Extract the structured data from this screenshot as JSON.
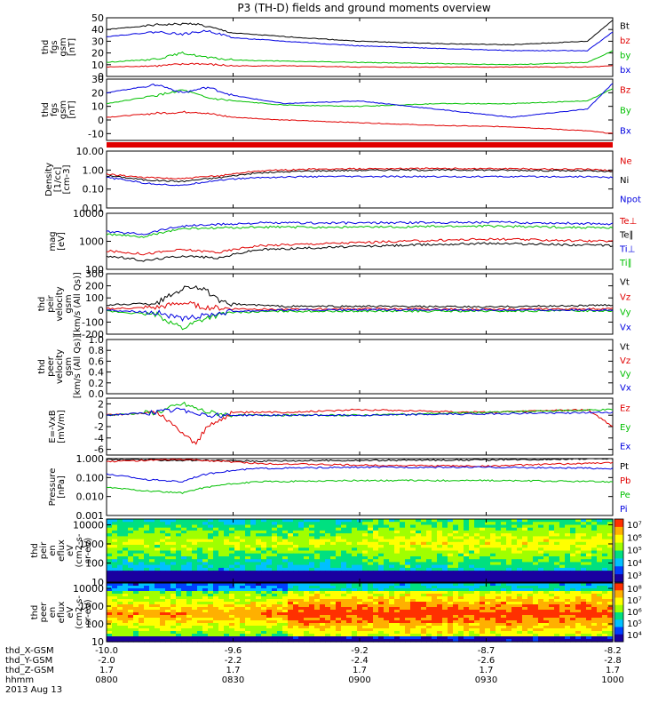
{
  "title": "P3 (TH-D) fields and ground moments overview",
  "colors": {
    "black": "#000000",
    "red": "#e00000",
    "green": "#00c000",
    "blue": "#0000e0"
  },
  "chart_data": [
    {
      "type": "line",
      "id": "fgs-mag",
      "ylabel": [
        "thd",
        "fgs",
        "gsm",
        "[nT]"
      ],
      "ylim": [
        0,
        50
      ],
      "yticks": [
        "0",
        "10",
        "20",
        "30",
        "40",
        "50"
      ],
      "series": [
        {
          "name": "Bt",
          "color": "black",
          "x": [
            8.0,
            8.2,
            8.35,
            8.5,
            8.7,
            9.0,
            9.3,
            9.6,
            9.9,
            10.0
          ],
          "values": [
            40,
            44,
            45,
            37,
            34,
            30,
            28,
            27,
            30,
            48
          ]
        },
        {
          "name": "bz",
          "color": "red",
          "x": [
            8.0,
            8.2,
            8.35,
            8.5,
            8.7,
            9.0,
            9.3,
            9.6,
            9.9,
            10.0
          ],
          "values": [
            8,
            9,
            11,
            9,
            9,
            8,
            8,
            8,
            8,
            9
          ]
        },
        {
          "name": "by",
          "color": "green",
          "x": [
            8.0,
            8.2,
            8.3,
            8.4,
            8.5,
            8.7,
            9.0,
            9.3,
            9.6,
            9.9,
            10.0
          ],
          "values": [
            12,
            15,
            20,
            16,
            14,
            13,
            12,
            11,
            10,
            12,
            22
          ]
        },
        {
          "name": "bx",
          "color": "blue",
          "x": [
            8.0,
            8.2,
            8.3,
            8.4,
            8.5,
            8.7,
            9.0,
            9.3,
            9.6,
            9.9,
            10.0
          ],
          "values": [
            34,
            38,
            36,
            39,
            33,
            30,
            26,
            24,
            22,
            22,
            38
          ]
        }
      ]
    },
    {
      "type": "line",
      "id": "fgs-comp",
      "ylabel": [
        "thd",
        "fgs",
        "gsm",
        "[nT]"
      ],
      "ylim": [
        -15,
        30
      ],
      "yticks": [
        "-10",
        "0",
        "10",
        "20",
        "30"
      ],
      "series": [
        {
          "name": "Bz",
          "color": "red",
          "x": [
            8.0,
            8.2,
            8.35,
            8.5,
            8.7,
            9.0,
            9.3,
            9.6,
            9.9,
            10.0
          ],
          "values": [
            2,
            5,
            6,
            2,
            0,
            -2,
            -4,
            -5,
            -8,
            -10
          ]
        },
        {
          "name": "By",
          "color": "green",
          "x": [
            8.0,
            8.2,
            8.3,
            8.4,
            8.5,
            8.7,
            9.0,
            9.3,
            9.6,
            9.9,
            10.0
          ],
          "values": [
            12,
            18,
            22,
            16,
            14,
            11,
            10,
            12,
            12,
            14,
            23
          ]
        },
        {
          "name": "Bx",
          "color": "blue",
          "x": [
            8.0,
            8.2,
            8.3,
            8.4,
            8.5,
            8.7,
            9.0,
            9.3,
            9.6,
            9.9,
            10.0
          ],
          "values": [
            20,
            26,
            20,
            24,
            18,
            12,
            14,
            8,
            2,
            8,
            27
          ]
        }
      ]
    },
    {
      "type": "line",
      "id": "flag-bar",
      "ylabel": [],
      "color": "red"
    },
    {
      "type": "line",
      "id": "density",
      "ylabel": [
        "Density",
        "[1/cc]",
        "[cm-3]"
      ],
      "ylog": true,
      "ylim": [
        0.01,
        10
      ],
      "yticks": [
        "0.01",
        "0.10",
        "1.00",
        "10.00"
      ],
      "series": [
        {
          "name": "Ne",
          "color": "red",
          "x": [
            8.0,
            8.15,
            8.3,
            8.45,
            8.6,
            8.8,
            9.1,
            9.5,
            9.9,
            10.0
          ],
          "values": [
            0.6,
            0.4,
            0.35,
            0.5,
            0.9,
            1.1,
            1.2,
            1.2,
            1.1,
            0.9
          ]
        },
        {
          "name": "Ni",
          "color": "black",
          "x": [
            8.0,
            8.15,
            8.3,
            8.45,
            8.6,
            8.8,
            9.1,
            9.5,
            9.9,
            10.0
          ],
          "values": [
            0.5,
            0.3,
            0.25,
            0.4,
            0.7,
            0.9,
            1.0,
            1.0,
            0.9,
            0.8
          ]
        },
        {
          "name": "Npot",
          "color": "blue",
          "x": [
            8.0,
            8.15,
            8.3,
            8.45,
            8.6,
            8.8,
            9.1,
            9.5,
            9.9,
            10.0
          ],
          "values": [
            0.4,
            0.2,
            0.15,
            0.3,
            0.4,
            0.45,
            0.45,
            0.45,
            0.45,
            0.4
          ]
        }
      ]
    },
    {
      "type": "line",
      "id": "temperature",
      "ylabel": [
        "mag",
        "[eV]"
      ],
      "ylog": true,
      "ylim": [
        100,
        10000
      ],
      "yticks": [
        "100",
        "1000",
        "10000"
      ],
      "series": [
        {
          "name": "Te⊥",
          "color": "red",
          "x": [
            8.0,
            8.15,
            8.3,
            8.45,
            8.6,
            9.0,
            9.5,
            10.0
          ],
          "values": [
            450,
            350,
            500,
            400,
            700,
            900,
            1200,
            1000
          ]
        },
        {
          "name": "Te∥",
          "color": "black",
          "x": [
            8.0,
            8.15,
            8.3,
            8.45,
            8.6,
            9.0,
            9.5,
            10.0
          ],
          "values": [
            300,
            200,
            300,
            250,
            500,
            650,
            850,
            700
          ]
        },
        {
          "name": "Ti⊥",
          "color": "blue",
          "x": [
            8.0,
            8.15,
            8.3,
            8.45,
            8.6,
            9.0,
            9.5,
            10.0
          ],
          "values": [
            2200,
            1800,
            3500,
            4000,
            4500,
            4500,
            4800,
            4200
          ]
        },
        {
          "name": "Ti∥",
          "color": "green",
          "x": [
            8.0,
            8.15,
            8.3,
            8.45,
            8.6,
            9.0,
            9.5,
            10.0
          ],
          "values": [
            1800,
            1400,
            2800,
            3000,
            3200,
            3200,
            3500,
            3000
          ]
        }
      ]
    },
    {
      "type": "line",
      "id": "peir-velocity",
      "ylabel": [
        "thd",
        "peir",
        "velocity",
        "gsm",
        "[km/s (All Qs)]"
      ],
      "ylim": [
        -200,
        300
      ],
      "yticks": [
        "-200",
        "-100",
        "0",
        "100",
        "200",
        "300"
      ],
      "series": [
        {
          "name": "Vt",
          "color": "black",
          "x": [
            8.0,
            8.2,
            8.3,
            8.35,
            8.4,
            8.45,
            8.5,
            8.7,
            9.0,
            9.5,
            10.0
          ],
          "values": [
            40,
            60,
            180,
            200,
            150,
            60,
            50,
            30,
            30,
            25,
            40
          ]
        },
        {
          "name": "Vz",
          "color": "red",
          "x": [
            8.0,
            8.2,
            8.3,
            8.4,
            8.5,
            8.7,
            9.0,
            9.5,
            10.0
          ],
          "values": [
            10,
            20,
            60,
            20,
            10,
            5,
            10,
            5,
            10
          ]
        },
        {
          "name": "Vy",
          "color": "green",
          "x": [
            8.0,
            8.2,
            8.3,
            8.35,
            8.4,
            8.5,
            8.7,
            9.0,
            9.5,
            10.0
          ],
          "values": [
            -10,
            -40,
            -150,
            -100,
            -60,
            -20,
            -10,
            -10,
            -10,
            -5
          ]
        },
        {
          "name": "Vx",
          "color": "blue",
          "x": [
            8.0,
            8.2,
            8.3,
            8.4,
            8.5,
            8.7,
            9.0,
            9.5,
            10.0
          ],
          "values": [
            0,
            -20,
            -80,
            -40,
            -10,
            0,
            0,
            0,
            0
          ]
        }
      ]
    },
    {
      "type": "line",
      "id": "peer-velocity",
      "ylabel": [
        "thd",
        "peer",
        "velocity",
        "gsm",
        "[km/s (All Qs)]"
      ],
      "ylim": [
        0,
        1
      ],
      "yticks": [
        "0.0",
        "0.2",
        "0.4",
        "0.6",
        "0.8",
        "1.0"
      ],
      "series": [
        {
          "name": "Vt",
          "color": "black",
          "x": [],
          "values": []
        },
        {
          "name": "Vz",
          "color": "red",
          "x": [],
          "values": []
        },
        {
          "name": "Vy",
          "color": "green",
          "x": [],
          "values": []
        },
        {
          "name": "Vx",
          "color": "blue",
          "x": [],
          "values": []
        }
      ]
    },
    {
      "type": "line",
      "id": "efield",
      "ylabel": [
        "E=-VxB",
        "[mV/m]"
      ],
      "ylim": [
        -7,
        3
      ],
      "yticks": [
        "-6",
        "-4",
        "-2",
        "0",
        "2"
      ],
      "series": [
        {
          "name": "Ez",
          "color": "red",
          "x": [
            8.0,
            8.2,
            8.3,
            8.35,
            8.4,
            8.5,
            8.7,
            9.0,
            9.5,
            9.9,
            10.0
          ],
          "values": [
            0,
            0.5,
            -3,
            -5,
            -2,
            0.5,
            0.5,
            1,
            0.5,
            1,
            -2
          ]
        },
        {
          "name": "Ey",
          "color": "green",
          "x": [
            8.0,
            8.2,
            8.3,
            8.4,
            8.5,
            9.0,
            10.0
          ],
          "values": [
            0,
            0.5,
            2,
            0.5,
            0,
            0,
            1
          ]
        },
        {
          "name": "Ex",
          "color": "blue",
          "x": [
            8.0,
            8.2,
            8.3,
            8.4,
            8.5,
            9.0,
            10.0
          ],
          "values": [
            0,
            0.5,
            1,
            0,
            0,
            0,
            0.5
          ]
        }
      ]
    },
    {
      "type": "line",
      "id": "pressure",
      "ylabel": [
        "Pressure",
        "[nPa]"
      ],
      "ylog": true,
      "ylim": [
        0.001,
        1
      ],
      "yticks": [
        "0.001",
        "0.010",
        "0.100",
        "1.000"
      ],
      "series": [
        {
          "name": "Pt",
          "color": "black",
          "x": [
            8.0,
            8.3,
            8.6,
            9.0,
            9.5,
            10.0
          ],
          "values": [
            0.9,
            0.8,
            0.75,
            0.8,
            0.85,
            1.0
          ]
        },
        {
          "name": "Pb",
          "color": "red",
          "x": [
            8.0,
            8.3,
            8.6,
            9.0,
            9.5,
            10.0
          ],
          "values": [
            0.7,
            0.9,
            0.55,
            0.45,
            0.4,
            0.6
          ]
        },
        {
          "name": "Pe",
          "color": "green",
          "x": [
            8.0,
            8.15,
            8.3,
            8.45,
            8.6,
            9.0,
            9.5,
            10.0
          ],
          "values": [
            0.03,
            0.02,
            0.015,
            0.04,
            0.06,
            0.07,
            0.07,
            0.06
          ]
        },
        {
          "name": "Pi",
          "color": "blue",
          "x": [
            8.0,
            8.15,
            8.3,
            8.45,
            8.6,
            9.0,
            9.5,
            10.0
          ],
          "values": [
            0.15,
            0.08,
            0.06,
            0.2,
            0.3,
            0.35,
            0.35,
            0.3
          ]
        }
      ]
    },
    {
      "type": "heatmap",
      "id": "peir-spectrogram",
      "ylabel": [
        "thd",
        "peir",
        "en",
        "eflux",
        "eV",
        "(cm2-s-",
        "sr-eV)"
      ],
      "ylog": true,
      "ylim": [
        10,
        20000
      ],
      "yticks": [
        "10",
        "100",
        "1000",
        "10000"
      ],
      "colorbar_ticks": [
        "10³",
        "10⁴",
        "10⁵",
        "10⁶",
        "10⁷"
      ]
    },
    {
      "type": "heatmap",
      "id": "peer-spectrogram",
      "ylabel": [
        "thd",
        "peer",
        "en",
        "eflux",
        "eV",
        "(cm2-s-",
        "sr-eV)"
      ],
      "ylog": true,
      "ylim": [
        10,
        20000
      ],
      "yticks": [
        "10",
        "100",
        "1000",
        "10000"
      ],
      "colorbar_ticks": [
        "10⁴",
        "10⁵",
        "10⁶",
        "10⁷",
        "10⁸"
      ]
    }
  ],
  "axis_footer": {
    "row_labels": [
      "thd_X-GSM",
      "thd_Y-GSM",
      "thd_Z-GSM",
      "hhmm",
      "2013 Aug 13"
    ],
    "columns": [
      {
        "x_hour": 8.0,
        "values": [
          "-10.0",
          "-2.0",
          "1.7",
          "0800"
        ]
      },
      {
        "x_hour": 8.5,
        "values": [
          "-9.6",
          "-2.2",
          "1.7",
          "0830"
        ]
      },
      {
        "x_hour": 9.0,
        "values": [
          "-9.2",
          "-2.4",
          "1.7",
          "0900"
        ]
      },
      {
        "x_hour": 9.5,
        "values": [
          "-8.7",
          "-2.6",
          "1.7",
          "0930"
        ]
      },
      {
        "x_hour": 10.0,
        "values": [
          "-8.2",
          "-2.8",
          "1.7",
          "1000"
        ]
      }
    ]
  }
}
